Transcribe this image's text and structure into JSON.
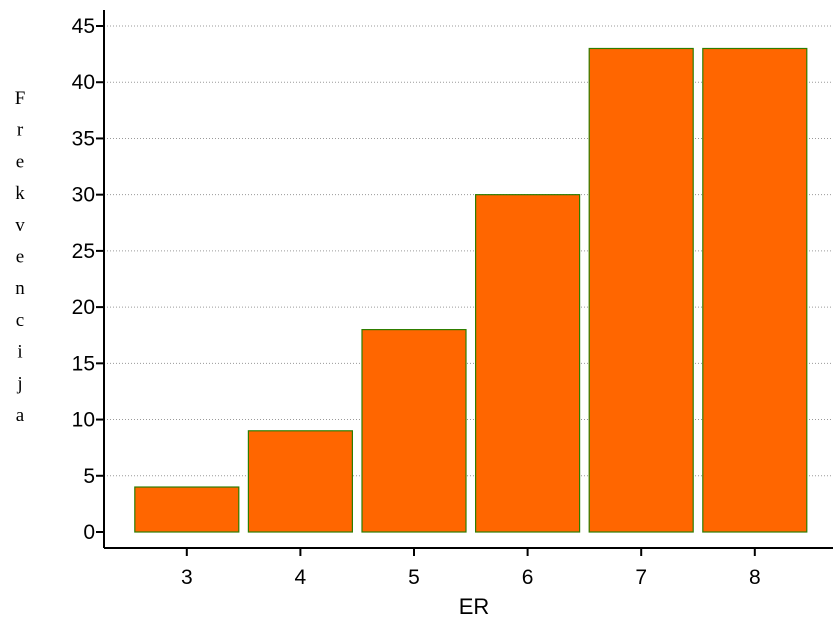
{
  "chart_data": {
    "type": "bar",
    "categories": [
      "3",
      "4",
      "5",
      "6",
      "7",
      "8"
    ],
    "values": [
      4,
      9,
      18,
      30,
      43,
      43
    ],
    "xlabel": "ER",
    "ylabel": "Frekvencija",
    "ylim": [
      0,
      45
    ],
    "yticks": [
      0,
      5,
      10,
      15,
      20,
      25,
      30,
      35,
      40,
      45
    ],
    "grid": "horizontal dotted",
    "colors": {
      "bar_fill": "#ff6600",
      "bar_stroke": "#2e7d00",
      "axis": "#000000",
      "grid": "#9a9a9a"
    }
  }
}
